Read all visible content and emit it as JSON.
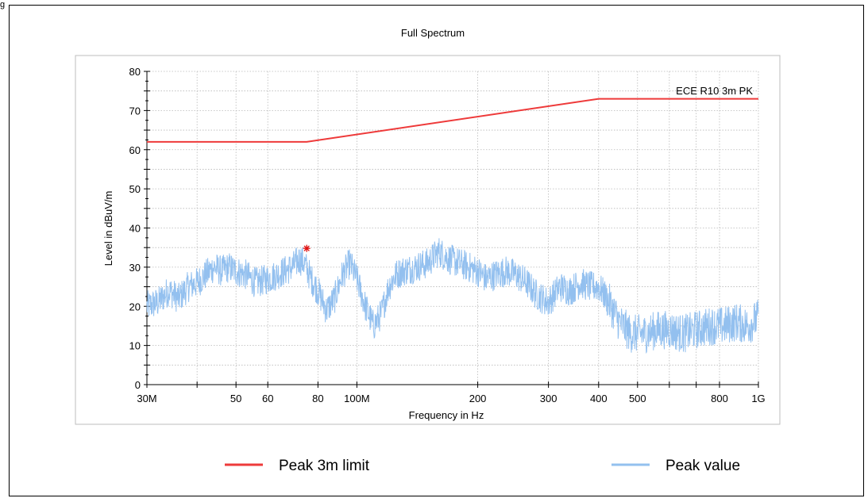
{
  "header": {
    "stamp": "g"
  },
  "colors": {
    "limit": "#ee3a3a",
    "peak": "#93c0ef",
    "marker": "#e01010",
    "grid": "#b8b8b8"
  },
  "chart_data": {
    "type": "line",
    "title": "Full Spectrum",
    "xlabel": "Frequency in Hz",
    "ylabel": "Level in dBuV/m",
    "x_scale": "log",
    "xlim": [
      30000000,
      1000000000
    ],
    "ylim": [
      0,
      80
    ],
    "grid": true,
    "x_ticks": [
      {
        "value": 30000000,
        "label": "30M"
      },
      {
        "value": 40000000,
        "label": ""
      },
      {
        "value": 50000000,
        "label": "50"
      },
      {
        "value": 60000000,
        "label": "60"
      },
      {
        "value": 80000000,
        "label": "80"
      },
      {
        "value": 100000000,
        "label": "100M"
      },
      {
        "value": 200000000,
        "label": "200"
      },
      {
        "value": 300000000,
        "label": "300"
      },
      {
        "value": 400000000,
        "label": "400"
      },
      {
        "value": 500000000,
        "label": "500"
      },
      {
        "value": 600000000,
        "label": ""
      },
      {
        "value": 700000000,
        "label": ""
      },
      {
        "value": 800000000,
        "label": "800"
      },
      {
        "value": 1000000000,
        "label": "1G"
      }
    ],
    "y_ticks": [
      0,
      10,
      20,
      30,
      40,
      50,
      60,
      70,
      80
    ],
    "annotations": [
      {
        "text": "ECE R10 3m PK",
        "series": "Peak 3m limit"
      }
    ],
    "series": [
      {
        "name": "Peak 3m limit",
        "color": "#ee3a3a",
        "points": [
          [
            30000000,
            62
          ],
          [
            75000000,
            62
          ],
          [
            400000000,
            73
          ],
          [
            1000000000,
            73
          ]
        ]
      },
      {
        "name": "Peak value",
        "color": "#93c0ef",
        "points": [
          [
            30000000,
            20
          ],
          [
            32000000,
            21
          ],
          [
            34000000,
            24
          ],
          [
            36000000,
            22
          ],
          [
            38000000,
            25
          ],
          [
            40000000,
            26
          ],
          [
            42000000,
            28
          ],
          [
            44000000,
            30
          ],
          [
            46000000,
            29
          ],
          [
            48000000,
            30
          ],
          [
            50000000,
            29
          ],
          [
            53000000,
            28
          ],
          [
            56000000,
            26
          ],
          [
            60000000,
            27
          ],
          [
            63000000,
            28
          ],
          [
            66000000,
            29
          ],
          [
            69000000,
            30
          ],
          [
            72000000,
            32
          ],
          [
            74000000,
            31
          ],
          [
            77000000,
            27
          ],
          [
            80000000,
            24
          ],
          [
            84000000,
            19
          ],
          [
            88000000,
            22
          ],
          [
            92000000,
            28
          ],
          [
            96000000,
            31
          ],
          [
            100000000,
            27
          ],
          [
            105000000,
            20
          ],
          [
            110000000,
            15
          ],
          [
            115000000,
            18
          ],
          [
            120000000,
            25
          ],
          [
            125000000,
            28
          ],
          [
            130000000,
            29
          ],
          [
            140000000,
            30
          ],
          [
            150000000,
            31
          ],
          [
            160000000,
            34
          ],
          [
            170000000,
            32
          ],
          [
            180000000,
            31
          ],
          [
            190000000,
            30
          ],
          [
            200000000,
            29
          ],
          [
            210000000,
            27
          ],
          [
            220000000,
            28
          ],
          [
            235000000,
            29
          ],
          [
            250000000,
            28
          ],
          [
            265000000,
            26
          ],
          [
            280000000,
            23
          ],
          [
            300000000,
            21
          ],
          [
            320000000,
            25
          ],
          [
            340000000,
            24
          ],
          [
            360000000,
            26
          ],
          [
            380000000,
            25
          ],
          [
            400000000,
            25
          ],
          [
            420000000,
            22
          ],
          [
            450000000,
            16
          ],
          [
            480000000,
            13
          ],
          [
            520000000,
            13
          ],
          [
            560000000,
            14
          ],
          [
            600000000,
            14
          ],
          [
            650000000,
            13
          ],
          [
            700000000,
            14
          ],
          [
            760000000,
            15
          ],
          [
            820000000,
            15
          ],
          [
            880000000,
            16
          ],
          [
            940000000,
            15
          ],
          [
            1000000000,
            17
          ]
        ]
      }
    ],
    "peak_marker": {
      "x": 75000000,
      "y": 34.8
    }
  },
  "legend": {
    "position": "bottom",
    "items": [
      {
        "label": "Peak 3m limit",
        "color": "#ee3a3a"
      },
      {
        "label": "Peak value",
        "color": "#93c0ef"
      }
    ]
  }
}
